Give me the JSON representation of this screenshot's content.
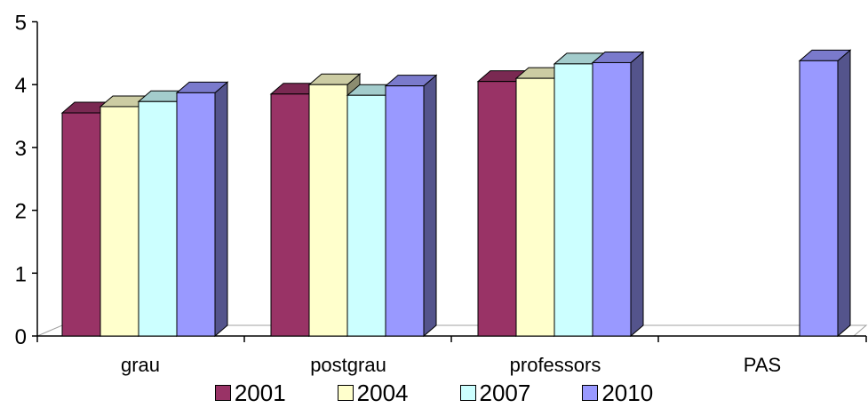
{
  "chart_data": {
    "type": "bar",
    "categories": [
      "grau",
      "postgrau",
      "professors",
      "PAS"
    ],
    "series": [
      {
        "name": "2001",
        "color": "#993366",
        "values": [
          3.55,
          3.85,
          4.05,
          null
        ]
      },
      {
        "name": "2004",
        "color": "#FFFFCC",
        "values": [
          3.65,
          4.0,
          4.1,
          null
        ]
      },
      {
        "name": "2007",
        "color": "#CCFFFF",
        "values": [
          3.73,
          3.83,
          4.33,
          null
        ]
      },
      {
        "name": "2010",
        "color": "#9999FF",
        "values": [
          3.87,
          3.98,
          4.35,
          4.38
        ]
      }
    ],
    "ylim": [
      0,
      5
    ],
    "yticks": [
      0,
      1,
      2,
      3,
      4,
      5
    ],
    "legend_position": "bottom",
    "style": "3d-bar"
  }
}
